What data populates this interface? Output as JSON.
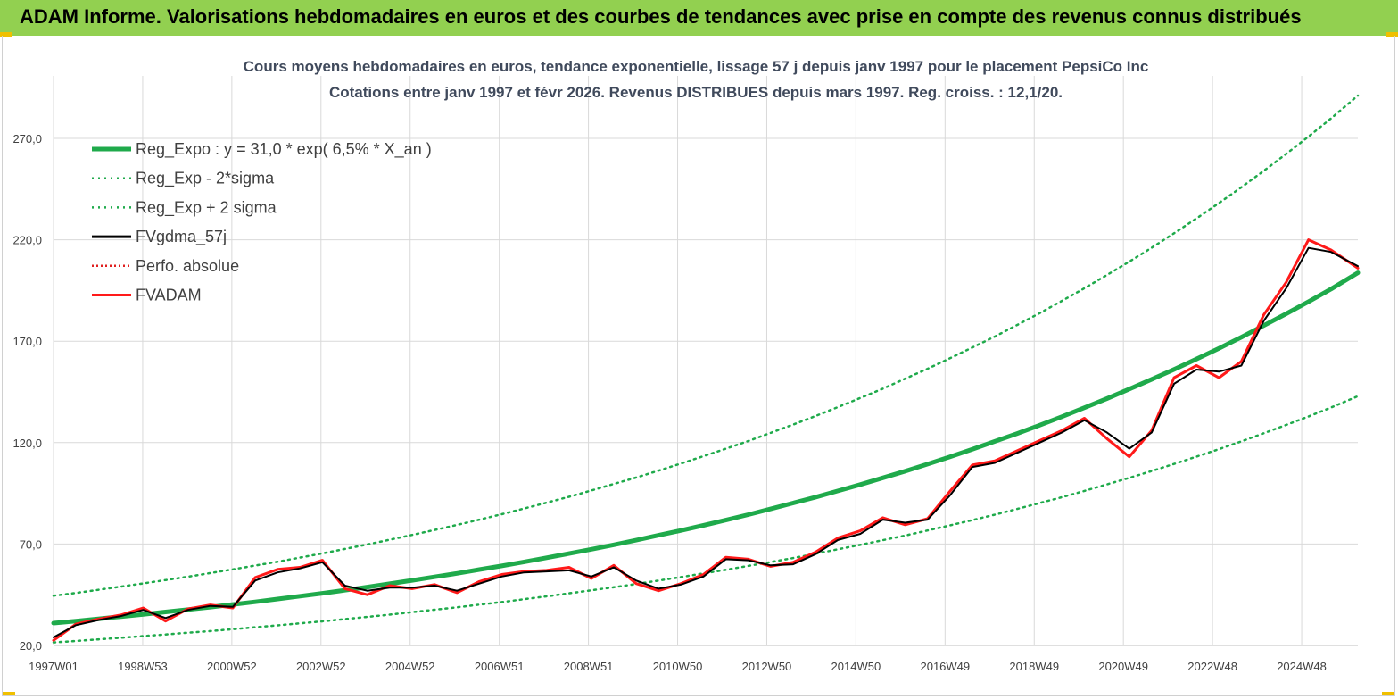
{
  "banner": {
    "title": "ADAM Informe. Valorisations hebdomadaires en euros et des courbes de tendances avec prise en compte des revenus connus distribués"
  },
  "colors": {
    "banner": "#92d050",
    "reg": "#1faa4b",
    "band": "#1faa4b",
    "smooth": "#000000",
    "perf": "#e02020",
    "adam": "#ff1a1a",
    "grid": "#d9d9d9"
  },
  "chart_data": {
    "type": "line",
    "title": "Cours moyens hebdomadaires en euros, tendance exponentielle, lissage 57 j depuis janv 1997 pour le placement PepsiCo Inc",
    "subtitle": "Cotations entre janv 1997 et févr 2026. Revenus DISTRIBUES depuis mars 1997. Reg. croiss. : 12,1/20.",
    "xlabel": "",
    "ylabel": "",
    "ylim": [
      20,
      290
    ],
    "yticks": [
      "20,0",
      "70,0",
      "120,0",
      "170,0",
      "220,0",
      "270,0"
    ],
    "xticks": [
      "1997W01",
      "1998W53",
      "2000W52",
      "2002W52",
      "2004W52",
      "2006W51",
      "2008W51",
      "2010W50",
      "2012W50",
      "2014W50",
      "2016W49",
      "2018W49",
      "2020W49",
      "2022W48",
      "2024W48"
    ],
    "grid": true,
    "legend_position": "top-left",
    "x_years": [
      1997.0,
      1997.5,
      1998.0,
      1998.5,
      1999.0,
      1999.5,
      2000.0,
      2000.5,
      2001.0,
      2001.5,
      2002.0,
      2002.5,
      2003.0,
      2003.5,
      2004.0,
      2004.5,
      2005.0,
      2005.5,
      2006.0,
      2006.5,
      2007.0,
      2007.5,
      2008.0,
      2008.5,
      2009.0,
      2009.5,
      2010.0,
      2010.5,
      2011.0,
      2011.5,
      2012.0,
      2012.5,
      2013.0,
      2013.5,
      2014.0,
      2014.5,
      2015.0,
      2015.5,
      2016.0,
      2016.5,
      2017.0,
      2017.5,
      2018.0,
      2018.5,
      2019.0,
      2019.5,
      2020.0,
      2020.5,
      2021.0,
      2021.5,
      2022.0,
      2022.5,
      2023.0,
      2023.5,
      2024.0,
      2024.5,
      2025.0,
      2025.5,
      2026.1
    ],
    "series": [
      {
        "name": "Reg_Expo : y = 31,0 * exp( 6,5% *  X_an )",
        "style": "solid-thick",
        "values": [
          31.0,
          32.0,
          33.1,
          34.2,
          35.3,
          36.5,
          37.7,
          38.9,
          40.2,
          41.5,
          42.9,
          44.3,
          45.7,
          47.2,
          48.8,
          50.4,
          52.1,
          53.8,
          55.5,
          57.4,
          59.2,
          61.2,
          63.2,
          65.3,
          67.4,
          69.6,
          71.9,
          74.3,
          76.7,
          79.2,
          81.8,
          84.5,
          87.3,
          90.2,
          93.1,
          96.2,
          99.3,
          102.6,
          105.9,
          109.4,
          113.0,
          116.7,
          120.6,
          124.5,
          128.6,
          132.8,
          137.2,
          141.7,
          146.4,
          151.2,
          156.1,
          161.2,
          166.5,
          172.0,
          177.7,
          183.5,
          189.5,
          195.7,
          203.7
        ]
      },
      {
        "name": "Reg_Exp - 2*sigma",
        "style": "dotted",
        "values": [
          21.5,
          22.2,
          23.0,
          23.8,
          24.6,
          25.4,
          26.3,
          27.1,
          28.0,
          29.0,
          29.9,
          30.9,
          31.9,
          33.0,
          34.1,
          35.2,
          36.4,
          37.6,
          38.8,
          40.1,
          41.4,
          42.8,
          44.2,
          45.7,
          47.2,
          48.7,
          50.3,
          52.0,
          53.7,
          55.5,
          57.3,
          59.2,
          61.1,
          63.1,
          65.2,
          67.4,
          69.6,
          71.9,
          74.2,
          76.7,
          79.2,
          81.8,
          84.5,
          87.3,
          90.2,
          93.1,
          96.2,
          99.4,
          102.6,
          106.0,
          109.5,
          113.1,
          116.8,
          120.6,
          124.6,
          128.7,
          132.9,
          137.3,
          142.9
        ]
      },
      {
        "name": "Reg_Exp + 2 sigma",
        "style": "dotted",
        "values": [
          44.5,
          45.9,
          47.4,
          49.0,
          50.6,
          52.2,
          53.9,
          55.7,
          57.5,
          59.4,
          61.3,
          63.3,
          65.4,
          67.6,
          69.8,
          72.1,
          74.5,
          76.9,
          79.4,
          82.0,
          84.7,
          87.5,
          90.4,
          93.3,
          96.4,
          99.6,
          102.8,
          106.2,
          109.7,
          113.3,
          117.0,
          120.8,
          124.8,
          128.9,
          133.1,
          137.5,
          142.0,
          146.6,
          151.5,
          156.4,
          161.6,
          166.9,
          172.3,
          178.0,
          183.8,
          189.9,
          196.1,
          202.6,
          209.2,
          216.1,
          223.2,
          230.5,
          238.1,
          245.9,
          254.0,
          262.3,
          270.9,
          279.8,
          291.1
        ]
      },
      {
        "name": "FVgdma_57j",
        "style": "solid",
        "values": [
          24.0,
          30.0,
          32.5,
          34.5,
          37.5,
          33.5,
          37.5,
          39.5,
          39.0,
          52.0,
          56.0,
          58.0,
          61.0,
          49.5,
          47.0,
          48.5,
          48.5,
          49.5,
          47.0,
          50.5,
          54.0,
          56.0,
          56.5,
          57.0,
          54.0,
          58.5,
          52.0,
          48.0,
          50.0,
          54.0,
          62.5,
          62.0,
          59.5,
          60.0,
          65.0,
          72.0,
          75.0,
          82.0,
          80.5,
          82.0,
          94.0,
          108.0,
          110.0,
          115.0,
          120.0,
          125.0,
          131.0,
          125.0,
          117.0,
          125.0,
          149.0,
          156.0,
          155.0,
          158.0,
          180.0,
          196.0,
          216.0,
          214.0,
          207.0
        ]
      },
      {
        "name": "Perfo. absolue",
        "style": "dotted-thin",
        "values": [
          24.0,
          30.0,
          32.5,
          34.5,
          37.5,
          33.5,
          37.5,
          39.5,
          39.0,
          52.0,
          56.0,
          58.0,
          61.0,
          49.5,
          47.0,
          48.5,
          48.5,
          49.5,
          47.0,
          50.5,
          54.0,
          56.0,
          56.5,
          57.0,
          54.0,
          58.5,
          52.0,
          48.0,
          50.0,
          54.0,
          62.5,
          62.0,
          59.5,
          60.0,
          65.0,
          72.0,
          75.0,
          82.0,
          80.5,
          82.0,
          94.0,
          108.0,
          110.0,
          115.0,
          120.0,
          125.0,
          131.0,
          125.0,
          117.0,
          125.0,
          149.0,
          156.0,
          155.0,
          158.0,
          180.0,
          196.0,
          216.0,
          214.0,
          207.0
        ]
      },
      {
        "name": "FVADAM",
        "style": "solid-thick",
        "values": [
          22.5,
          30.5,
          33.0,
          35.0,
          38.5,
          32.0,
          38.0,
          40.0,
          38.5,
          53.5,
          57.5,
          58.5,
          62.0,
          48.0,
          45.0,
          49.5,
          48.0,
          50.0,
          46.0,
          51.5,
          55.0,
          56.5,
          57.0,
          58.5,
          53.0,
          59.5,
          50.5,
          47.0,
          50.5,
          55.0,
          63.5,
          62.5,
          59.0,
          61.0,
          66.0,
          73.0,
          76.5,
          83.0,
          79.5,
          82.5,
          96.0,
          109.0,
          111.0,
          116.0,
          121.0,
          126.0,
          132.0,
          122.0,
          113.0,
          126.0,
          152.0,
          158.0,
          152.0,
          160.0,
          183.0,
          199.0,
          220.0,
          215.0,
          206.0
        ]
      }
    ]
  }
}
